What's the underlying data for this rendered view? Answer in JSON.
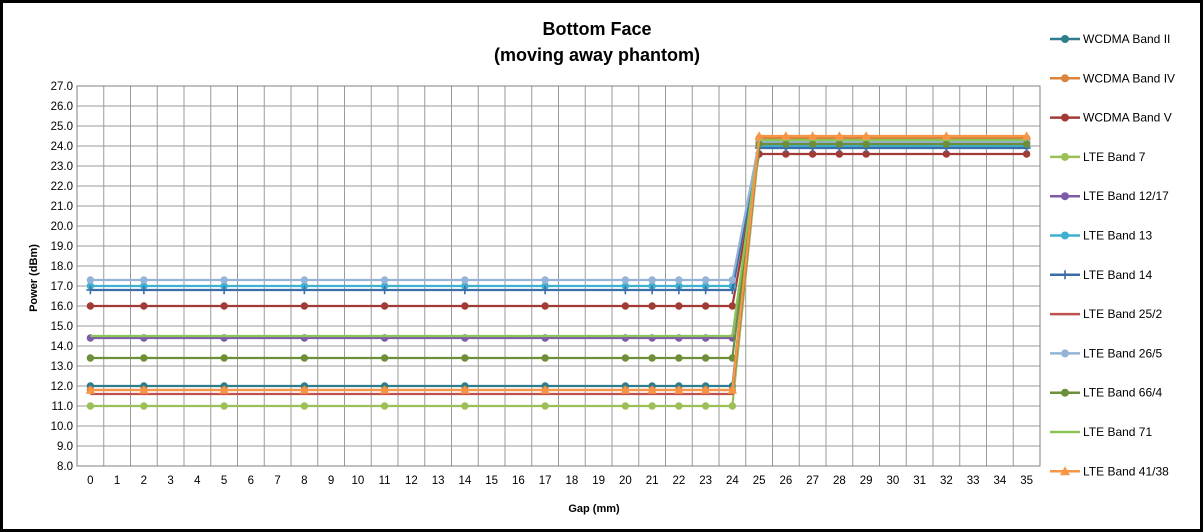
{
  "chart_data": {
    "type": "line",
    "title": "Bottom Face",
    "subtitle": "(moving away phantom)",
    "xlabel": "Gap (mm)",
    "ylabel": "Power (dBm)",
    "ylim": [
      8.0,
      27.0
    ],
    "y_step": 1.0,
    "x_categories": [
      "0",
      "1",
      "2",
      "3",
      "4",
      "5",
      "6",
      "7",
      "8",
      "9",
      "10",
      "11",
      "12",
      "13",
      "14",
      "15",
      "16",
      "17",
      "18",
      "19",
      "20",
      "21",
      "22",
      "23",
      "24",
      "25",
      "26",
      "27",
      "28",
      "29",
      "30",
      "31",
      "32",
      "33",
      "34",
      "35"
    ],
    "x_measured": [
      0,
      2,
      5,
      8,
      11,
      14,
      17,
      20,
      21,
      22,
      23,
      24,
      25,
      26,
      27,
      28,
      29,
      32,
      35
    ],
    "grid": true,
    "legend_position": "right",
    "series": [
      {
        "name": "WCDMA Band II",
        "color": "#2E7D8C",
        "marker": "circle",
        "low": 12.0,
        "high": 24.2
      },
      {
        "name": "WCDMA Band IV",
        "color": "#D9843A",
        "marker": "circle",
        "low": 11.8,
        "high": 24.4
      },
      {
        "name": "WCDMA Band V",
        "color": "#A23B35",
        "marker": "circle",
        "low": 16.0,
        "high": 23.6
      },
      {
        "name": "LTE Band 7",
        "color": "#9BC057",
        "marker": "circle",
        "low": 11.0,
        "high": 24.0
      },
      {
        "name": "LTE Band 12/17",
        "color": "#7D5BA6",
        "marker": "circle",
        "low": 14.4,
        "high": 24.2
      },
      {
        "name": "LTE Band 13",
        "color": "#3FB0D0",
        "marker": "circle",
        "low": 17.0,
        "high": 24.0
      },
      {
        "name": "LTE Band 14",
        "color": "#3B6EA8",
        "marker": "plus",
        "low": 16.8,
        "high": 23.9
      },
      {
        "name": "LTE Band 25/2",
        "color": "#C0504D",
        "marker": "none",
        "low": 11.6,
        "high": 24.3
      },
      {
        "name": "LTE Band 26/5",
        "color": "#95B3D7",
        "marker": "circle",
        "low": 17.3,
        "high": 24.2
      },
      {
        "name": "LTE Band 66/4",
        "color": "#6E8F3A",
        "marker": "circle",
        "low": 13.4,
        "high": 24.1
      },
      {
        "name": "LTE Band 71",
        "color": "#8DC45A",
        "marker": "none",
        "low": 14.5,
        "high": 24.3
      },
      {
        "name": "LTE Band 41/38",
        "color": "#F79646",
        "marker": "triangle",
        "low": 11.8,
        "high": 24.5
      }
    ]
  }
}
